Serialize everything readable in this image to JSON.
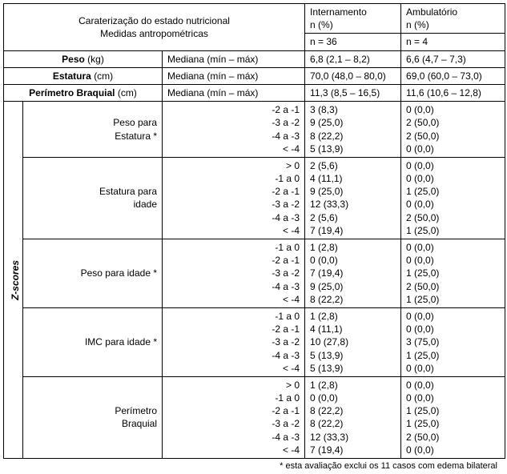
{
  "header": {
    "title_line1": "Caraterização do estado nutricional",
    "title_line2": "Medidas antropométricas",
    "intern_label": "Internamento",
    "intern_pct": "n (%)",
    "intern_n": "n = 36",
    "amb_label": "Ambulatório",
    "amb_pct": "n (%)",
    "amb_n": "n = 4"
  },
  "rows_top": [
    {
      "label": "Peso",
      "unit": "(kg)",
      "stat": "Mediana (mín – máx)",
      "intern": "6,8 (2,1 – 8,2)",
      "amb": "6,6 (4,7 – 7,3)"
    },
    {
      "label": "Estatura",
      "unit": "(cm)",
      "stat": "Mediana (mín – máx)",
      "intern": "70,0 (48,0 – 80,0)",
      "amb": "69,0 (60,0 – 73,0)"
    },
    {
      "label": "Perímetro Braquial",
      "unit": "(cm)",
      "stat": "Mediana (mín – máx)",
      "intern": "11,3 (8,5 – 16,5)",
      "amb": "11,6 (10,6 – 12,8)"
    }
  ],
  "z_label": "Z-scores",
  "groups": [
    {
      "name": "Peso para\nEstatura *",
      "ranges": "-2 a -1\n-3 a -2\n-4 a -3\n< -4",
      "intern": "3 (8,3)\n9 (25,0)\n8 (22,2)\n5 (13,9)",
      "amb": "0 (0,0)\n2 (50,0)\n2 (50,0)\n0 (0,0)"
    },
    {
      "name": "Estatura para\nidade",
      "ranges": "> 0\n-1 a 0\n-2 a -1\n-3 a -2\n-4 a -3\n< -4",
      "intern": "2 (5,6)\n4 (11,1)\n9 (25,0)\n12 (33,3)\n2 (5,6)\n7 (19,4)",
      "amb": "0 (0,0)\n0 (0,0)\n1 (25,0)\n0 (0,0)\n2 (50,0)\n1 (25,0)"
    },
    {
      "name": "Peso para idade *",
      "ranges": "-1 a 0\n-2 a -1\n-3 a -2\n-4 a -3\n< -4",
      "intern": "1 (2,8)\n0 (0,0)\n7 (19,4)\n9 (25,0)\n8 (22,2)",
      "amb": "0 (0,0)\n0 (0,0)\n1 (25,0)\n2 (50,0)\n1 (25,0)"
    },
    {
      "name": "IMC para idade *",
      "ranges": "-1 a 0\n-2 a -1\n-3 a -2\n-4 a -3\n< -4",
      "intern": "1 (2,8)\n4 (11,1)\n10 (27,8)\n5 (13,9)\n5 (13,9)",
      "amb": "0 (0,0)\n0 (0,0)\n3 (75,0)\n1 (25,0)\n0 (0,0)"
    },
    {
      "name": "Perímetro\nBraquial",
      "ranges": "> 0\n-1 a 0\n-2 a -1\n-3 a -2\n-4 a -3\n< -4",
      "intern": "1 (2,8)\n0 (0,0)\n8 (22,2)\n8 (22,2)\n12 (33,3)\n7 (19,4)",
      "amb": "0 (0,0)\n0 (0,0)\n1 (25,0)\n1 (25,0)\n2 (50,0)\n0 (0,0)"
    }
  ],
  "footnote": "* esta avaliação exclui os 11 casos com edema bilateral"
}
